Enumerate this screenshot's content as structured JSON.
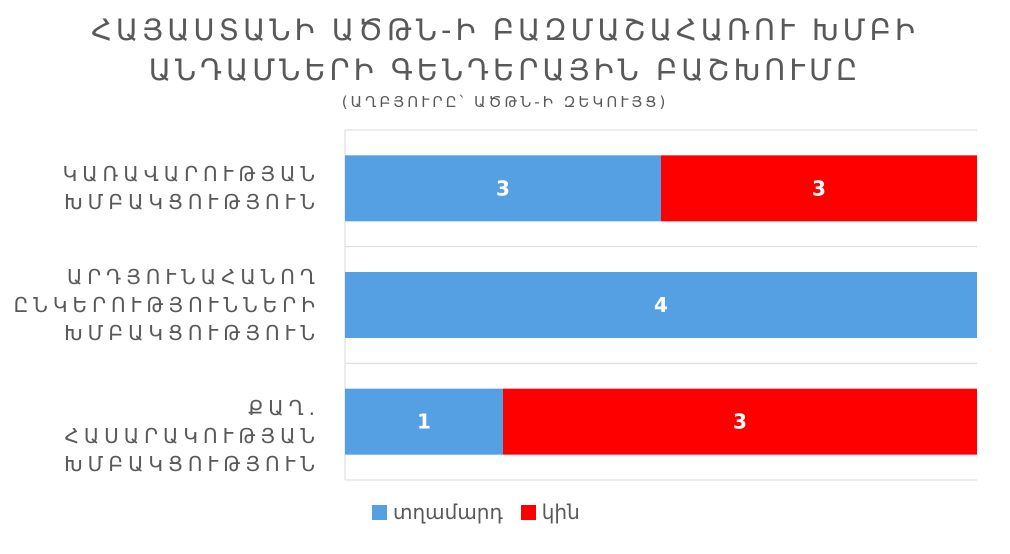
{
  "chart_data": {
    "type": "bar",
    "orientation": "horizontal",
    "stacked": true,
    "normalized": true,
    "title_lines": [
      "ՀԱՅԱՍՏԱՆԻ ԱԾԹՆ-Ի ԲԱԶՄԱՇԱՀԱՌՈՒ ԽՄԲԻ",
      "ԱՆԴԱՄՆԵՐԻ ԳԵՆԴԵՐԱՅԻՆ ԲԱՇԽՈՒՄԸ"
    ],
    "subtitle": "(ԱՂԲՅՈՒՐԸ՝ ԱԾԹՆ-Ի ԶԵԿՈՒՅՑ)",
    "categories": [
      [
        "ԿԱՌԱՎԱՐՈՒԹՅԱՆ",
        "ԽՄԲԱԿՑՈՒԹՅՈՒՆ"
      ],
      [
        "ԱՐԴՅՈՒՆԱՀԱՆՈՂ",
        "ԸՆԿԵՐՈՒԹՅՈՒՆՆԵՐԻ",
        "ԽՄԲԱԿՑՈՒԹՅՈՒՆ"
      ],
      [
        "ՔԱՂ. ՀԱՍԱՐԱԿՈՒԹՅԱՆ",
        "ԽՄԲԱԿՑՈՒԹՅՈՒՆ"
      ]
    ],
    "series": [
      {
        "name": "տղամարդ",
        "color": "#559fe3",
        "values": [
          3,
          4,
          1
        ]
      },
      {
        "name": "կին",
        "color": "#ff0000",
        "values": [
          3,
          0,
          3
        ]
      }
    ],
    "grid": true,
    "legend_position": "bottom"
  }
}
